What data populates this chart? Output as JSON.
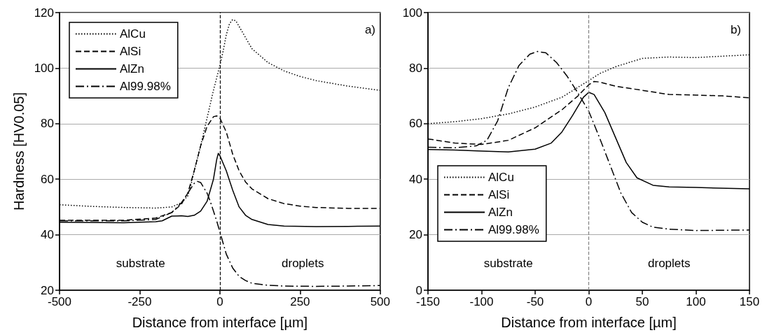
{
  "chart_data": [
    {
      "type": "line",
      "xlabel": "Distance from interface [µm]",
      "ylabel": "Hardness [HV0.05]",
      "xlim": [
        -500,
        500
      ],
      "xticks": [
        -500,
        -250,
        0,
        250,
        500
      ],
      "ylim": [
        20,
        120
      ],
      "yticks": [
        20,
        40,
        60,
        80,
        100,
        120
      ],
      "grid": "y",
      "legend": "top left",
      "marker": "none",
      "annotations": [
        "a)",
        "substrate",
        "droplets"
      ],
      "ref_lines": [
        {
          "axis": "x",
          "value": 0,
          "color": "#000000",
          "line_style": "dashed"
        }
      ],
      "series": [
        {
          "name": "AlCu",
          "color": "#000000",
          "line_style": "dotted",
          "x": [
            -500,
            -400,
            -300,
            -200,
            -150,
            -120,
            -100,
            -90,
            -80,
            -60,
            -40,
            -20,
            0,
            10,
            20,
            30,
            40,
            50,
            75,
            100,
            150,
            200,
            250,
            300,
            400,
            500
          ],
          "values": [
            50.8,
            50.2,
            49.8,
            49.6,
            50,
            51.5,
            54,
            58,
            63,
            72,
            82,
            92,
            101,
            106,
            112,
            116,
            117.5,
            117,
            112,
            107,
            102,
            99,
            97,
            95.5,
            93.5,
            92
          ]
        },
        {
          "name": "AlSi",
          "color": "#000000",
          "line_style": "dashed",
          "x": [
            -500,
            -300,
            -200,
            -150,
            -120,
            -100,
            -80,
            -60,
            -40,
            -20,
            -10,
            0,
            20,
            40,
            60,
            80,
            100,
            150,
            200,
            250,
            300,
            400,
            500
          ],
          "values": [
            45.2,
            45.2,
            46,
            48,
            51,
            55,
            63,
            72,
            79,
            82.5,
            82.8,
            82,
            77,
            69,
            63,
            59,
            56.5,
            53,
            51.2,
            50.3,
            49.8,
            49.5,
            49.5
          ]
        },
        {
          "name": "AlZn",
          "color": "#000000",
          "line_style": "solid",
          "x": [
            -500,
            -300,
            -200,
            -180,
            -150,
            -120,
            -100,
            -80,
            -60,
            -40,
            -20,
            -10,
            -5,
            0,
            20,
            40,
            60,
            80,
            100,
            150,
            200,
            300,
            400,
            500
          ],
          "values": [
            44.5,
            44.3,
            44.7,
            45,
            46.7,
            46.8,
            46.6,
            47,
            48.5,
            52,
            60,
            67,
            69.3,
            68.5,
            63,
            56,
            50,
            47,
            45.5,
            43.7,
            43.1,
            42.9,
            43,
            43.1
          ]
        },
        {
          "name": "Al99.98%",
          "color": "#000000",
          "line_style": "dashdot",
          "x": [
            -500,
            -300,
            -200,
            -150,
            -120,
            -100,
            -80,
            -70,
            -60,
            -40,
            -30,
            -20,
            -10,
            0,
            10,
            20,
            40,
            60,
            80,
            100,
            150,
            200,
            300,
            400,
            500
          ],
          "values": [
            45,
            45,
            45.5,
            48,
            51.5,
            55,
            58.5,
            59.2,
            58.8,
            55,
            52,
            48.5,
            45,
            41,
            37,
            33,
            28,
            25,
            23.5,
            22.5,
            21.8,
            21.5,
            21.4,
            21.5,
            21.7
          ]
        }
      ]
    },
    {
      "type": "line",
      "xlabel": "Distance from interface [µm]",
      "xlim": [
        -150,
        150
      ],
      "xticks": [
        -150,
        -100,
        -50,
        0,
        50,
        100,
        150
      ],
      "ylim": [
        0,
        100
      ],
      "yticks": [
        0,
        20,
        40,
        60,
        80,
        100
      ],
      "grid": "y",
      "legend": "bottom left",
      "marker": "none",
      "annotations": [
        "b)",
        "substrate",
        "droplets"
      ],
      "ref_lines": [
        {
          "axis": "x",
          "value": 0,
          "color": "#808080",
          "line_style": "dashed"
        }
      ],
      "series": [
        {
          "name": "AlCu",
          "color": "#000000",
          "line_style": "dotted",
          "x": [
            -150,
            -125,
            -100,
            -75,
            -50,
            -25,
            0,
            10,
            25,
            50,
            75,
            100,
            125,
            150
          ],
          "values": [
            60,
            60.7,
            61.8,
            63.5,
            66,
            69.5,
            75.5,
            78,
            80.5,
            83.5,
            84,
            83.8,
            84.3,
            84.8
          ]
        },
        {
          "name": "AlSi",
          "color": "#000000",
          "line_style": "dashed",
          "x": [
            -150,
            -125,
            -100,
            -75,
            -50,
            -25,
            -10,
            0,
            5,
            10,
            25,
            50,
            75,
            100,
            125,
            150
          ],
          "values": [
            54.5,
            53,
            52.5,
            54,
            58.5,
            65,
            70,
            74,
            75.2,
            75,
            73.5,
            72,
            70.5,
            70.3,
            70,
            69.3
          ]
        },
        {
          "name": "AlZn",
          "color": "#000000",
          "line_style": "solid",
          "x": [
            -150,
            -125,
            -100,
            -75,
            -50,
            -35,
            -25,
            -15,
            -5,
            0,
            5,
            15,
            25,
            35,
            45,
            60,
            75,
            100,
            150
          ],
          "values": [
            50.7,
            50.5,
            50.1,
            49.8,
            50.8,
            53,
            57,
            63,
            69.5,
            71.3,
            70.5,
            64,
            55,
            46,
            40.5,
            37.8,
            37.2,
            37,
            36.5
          ]
        },
        {
          "name": "Al99.98%",
          "color": "#000000",
          "line_style": "dashdot",
          "x": [
            -150,
            -125,
            -105,
            -95,
            -85,
            -75,
            -65,
            -55,
            -48,
            -40,
            -30,
            -20,
            -10,
            0,
            10,
            20,
            30,
            40,
            50,
            60,
            75,
            100,
            150
          ],
          "values": [
            51.5,
            51.3,
            52,
            54,
            61,
            73,
            81,
            85,
            86,
            85.5,
            82,
            77,
            71,
            64.5,
            55,
            45,
            35,
            28,
            24.5,
            22.7,
            22,
            21.5,
            21.7
          ]
        }
      ]
    }
  ]
}
